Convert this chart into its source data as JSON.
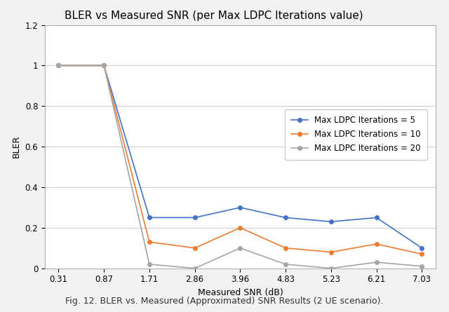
{
  "title": "BLER vs Measured SNR (per Max LDPC Iterations value)",
  "xlabel": "Measured SNR (dB)",
  "ylabel": "BLER",
  "x_labels": [
    "0.31",
    "0.87",
    "1.71",
    "2.86",
    "3.96",
    "4.83",
    "5.23",
    "6.21",
    "7.03"
  ],
  "series": [
    {
      "label": "Max LDPC Iterations = 5",
      "color": "#4472C4",
      "marker": "o",
      "values": [
        1.0,
        1.0,
        0.25,
        0.25,
        0.3,
        0.25,
        0.23,
        0.25,
        0.1
      ]
    },
    {
      "label": "Max LDPC Iterations = 10",
      "color": "#ED7D31",
      "marker": "o",
      "values": [
        1.0,
        1.0,
        0.13,
        0.1,
        0.2,
        0.1,
        0.08,
        0.12,
        0.07
      ]
    },
    {
      "label": "Max LDPC Iterations = 20",
      "color": "#A5A5A5",
      "marker": "o",
      "values": [
        1.0,
        1.0,
        0.02,
        0.0,
        0.1,
        0.02,
        0.0,
        0.03,
        0.01
      ]
    }
  ],
  "ylim": [
    0,
    1.2
  ],
  "yticks": [
    0,
    0.2,
    0.4,
    0.6,
    0.8,
    1.0,
    1.2
  ],
  "figure_bg_color": "#f2f2f2",
  "plot_bg_color": "#ffffff",
  "grid_color": "#d0d0d0",
  "spine_color": "#b0b0b0",
  "title_fontsize": 11,
  "axis_label_fontsize": 9,
  "tick_fontsize": 8.5,
  "legend_fontsize": 8.5,
  "figure_caption": "Fig. 12. BLER vs. Measured (Approximated) SNR Results (2 UE scenario).",
  "caption_fontsize": 9
}
